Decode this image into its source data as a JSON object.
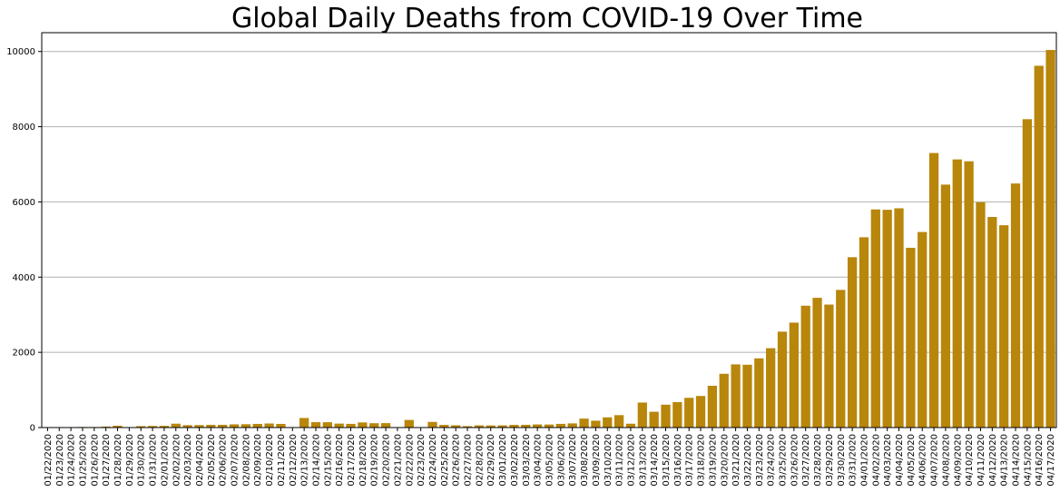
{
  "chart_data": {
    "type": "bar",
    "title": "Global Daily Deaths from COVID-19 Over Time",
    "xlabel": "",
    "ylabel": "",
    "bar_color": "#b8860b",
    "ylim": [
      0,
      10500
    ],
    "y_ticks": [
      0,
      2000,
      4000,
      6000,
      8000,
      10000
    ],
    "grid": "horizontal",
    "categories": [
      "01/22/2020",
      "01/23/2020",
      "01/24/2020",
      "01/25/2020",
      "01/26/2020",
      "01/27/2020",
      "01/28/2020",
      "01/29/2020",
      "01/30/2020",
      "01/31/2020",
      "02/01/2020",
      "02/02/2020",
      "02/03/2020",
      "02/04/2020",
      "02/05/2020",
      "02/06/2020",
      "02/07/2020",
      "02/08/2020",
      "02/09/2020",
      "02/10/2020",
      "02/11/2020",
      "02/12/2020",
      "02/13/2020",
      "02/14/2020",
      "02/15/2020",
      "02/16/2020",
      "02/17/2020",
      "02/18/2020",
      "02/19/2020",
      "02/20/2020",
      "02/21/2020",
      "02/22/2020",
      "02/23/2020",
      "02/24/2020",
      "02/25/2020",
      "02/26/2020",
      "02/27/2020",
      "02/28/2020",
      "02/29/2020",
      "03/01/2020",
      "03/02/2020",
      "03/03/2020",
      "03/04/2020",
      "03/05/2020",
      "03/06/2020",
      "03/07/2020",
      "03/08/2020",
      "03/09/2020",
      "03/10/2020",
      "03/11/2020",
      "03/12/2020",
      "03/13/2020",
      "03/14/2020",
      "03/15/2020",
      "03/16/2020",
      "03/17/2020",
      "03/18/2020",
      "03/19/2020",
      "03/20/2020",
      "03/21/2020",
      "03/22/2020",
      "03/23/2020",
      "03/24/2020",
      "03/25/2020",
      "03/26/2020",
      "03/27/2020",
      "03/28/2020",
      "03/29/2020",
      "03/30/2020",
      "03/31/2020",
      "04/01/2020",
      "04/02/2020",
      "04/03/2020",
      "04/04/2020",
      "04/05/2020",
      "04/06/2020",
      "04/07/2020",
      "04/08/2020",
      "04/09/2020",
      "04/10/2020",
      "04/11/2020",
      "04/12/2020",
      "04/13/2020",
      "04/14/2020",
      "04/15/2020",
      "04/16/2020",
      "04/17/2020"
    ],
    "values": [
      0,
      1,
      8,
      16,
      14,
      26,
      49,
      2,
      38,
      42,
      46,
      103,
      64,
      66,
      72,
      73,
      86,
      89,
      97,
      108,
      97,
      0,
      254,
      143,
      142,
      105,
      98,
      136,
      115,
      118,
      0,
      202,
      0,
      150,
      71,
      61,
      37,
      58,
      55,
      58,
      71,
      73,
      83,
      80,
      98,
      111,
      238,
      182,
      271,
      330,
      102,
      665,
      420,
      608,
      676,
      790,
      840,
      1110,
      1430,
      1680,
      1670,
      1840,
      2110,
      2550,
      2790,
      3240,
      3450,
      3270,
      3660,
      4530,
      5060,
      5800,
      5790,
      5830,
      4780,
      5200,
      7300,
      6460,
      7130,
      7080,
      5990,
      5600,
      5380,
      6490,
      8200,
      9620,
      10040
    ]
  }
}
